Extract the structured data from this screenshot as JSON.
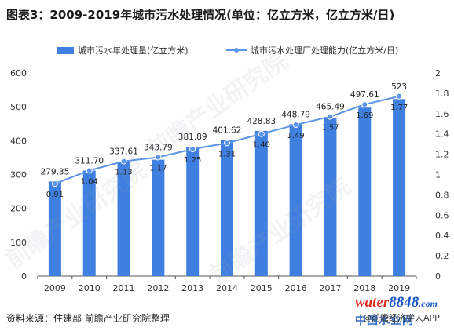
{
  "title": "图表3：2009-2019年城市污水处理情况(单位：亿立方米，亿立方米/日)",
  "source": "资料来源：住建部 前瞻产业研究院整理",
  "credit": "@前瞻经济学人APP",
  "logo": {
    "word": "water",
    "number": "8848",
    "suffix": ".com",
    "cn": "中国水业网"
  },
  "watermark": "前瞻产业研究院",
  "colors": {
    "bar": "#3f7fe0",
    "line": "#5a95e8",
    "axis": "#555555",
    "grid": "#e4e4e4"
  },
  "chart_data": {
    "type": "bar",
    "categories": [
      "2009",
      "2010",
      "2011",
      "2012",
      "2013",
      "2014",
      "2015",
      "2016",
      "2017",
      "2018",
      "2019"
    ],
    "series": [
      {
        "name": "城市污水年处理量(亿立方米)",
        "type": "bar",
        "axis": "left",
        "values": [
          279.35,
          311.7,
          337.61,
          343.79,
          381.89,
          401.62,
          428.83,
          448.79,
          465.49,
          497.61,
          523
        ],
        "labels": [
          "279.35",
          "311.70",
          "337.61",
          "343.79",
          "381.89",
          "401.62",
          "428.83",
          "448.79",
          "465.49",
          "497.61",
          "523"
        ]
      },
      {
        "name": "城市污水处理厂处理能力(亿立方米/日)",
        "type": "line",
        "axis": "right",
        "values": [
          0.91,
          1.04,
          1.13,
          1.17,
          1.25,
          1.31,
          1.4,
          1.49,
          1.57,
          1.69,
          1.77
        ],
        "labels": [
          "0.91",
          "1.04",
          "1.13",
          "1.17",
          "1.25",
          "1.31",
          "1.40",
          "1.49",
          "1.57",
          "1.69",
          "1.77"
        ]
      }
    ],
    "y_left": {
      "min": 0,
      "max": 600,
      "ticks": [
        "0",
        "100",
        "200",
        "300",
        "400",
        "500",
        "600"
      ]
    },
    "y_right": {
      "min": 0,
      "max": 2,
      "ticks": [
        "0",
        "0.2",
        "0.4",
        "0.6",
        "0.8",
        "1",
        "1.2",
        "1.4",
        "1.6",
        "1.8",
        "2"
      ]
    },
    "legend_position": "top-center",
    "grid": false
  }
}
